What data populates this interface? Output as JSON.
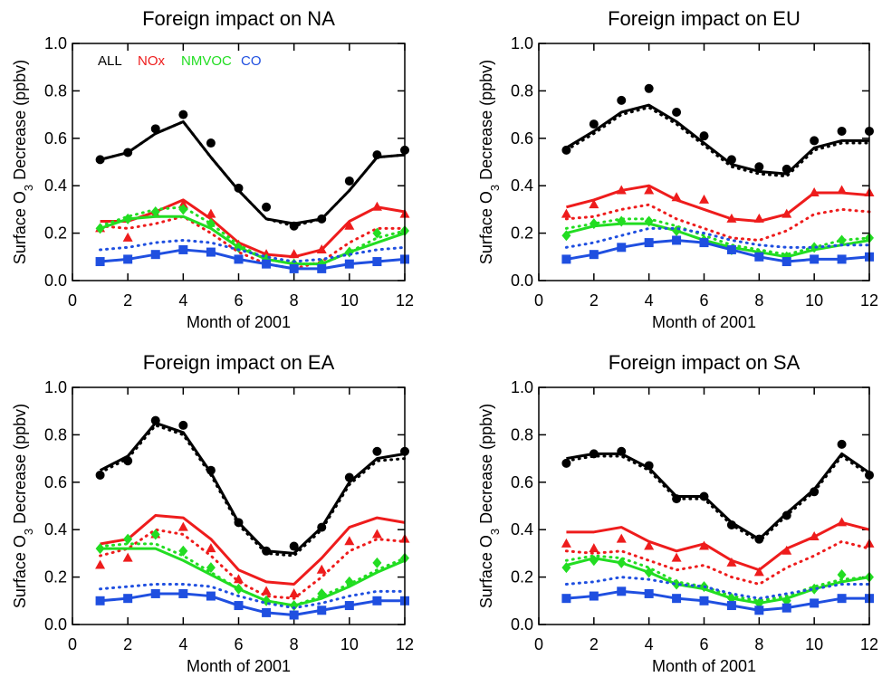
{
  "chart_data": [
    {
      "type": "line",
      "title": "Foreign impact on NA",
      "xlabel": "Month of 2001",
      "ylabel": [
        "Surface O",
        "3",
        " Decrease (ppbv)"
      ],
      "x": [
        1,
        2,
        3,
        4,
        5,
        6,
        7,
        8,
        9,
        10,
        11,
        12
      ],
      "xlim": [
        0,
        12
      ],
      "xticks": [
        0,
        2,
        4,
        6,
        8,
        10,
        12
      ],
      "ylim": [
        0,
        1
      ],
      "yticks": [
        {
          "value": 0,
          "label": "0.0"
        },
        0.2,
        0.4,
        0.6,
        0.8,
        {
          "value": 1,
          "label": "1.0"
        }
      ],
      "legend": "upper left",
      "series": [
        {
          "name": "ALL",
          "color": "#000000",
          "marker": "circle",
          "values": [
            0.51,
            0.54,
            0.62,
            0.67,
            0.52,
            0.38,
            0.26,
            0.24,
            0.26,
            0.38,
            0.52,
            0.53
          ],
          "dotted": [
            0.51,
            0.54,
            0.62,
            0.67,
            0.52,
            0.38,
            0.26,
            0.23,
            0.26,
            0.38,
            0.52,
            0.53
          ],
          "points": [
            0.51,
            0.54,
            0.64,
            0.7,
            0.58,
            0.39,
            0.31,
            0.23,
            0.26,
            0.42,
            0.53,
            0.55
          ]
        },
        {
          "name": "NOx",
          "color": "#ee1c1c",
          "marker": "triangle",
          "values": [
            0.25,
            0.25,
            0.29,
            0.34,
            0.26,
            0.16,
            0.11,
            0.1,
            0.13,
            0.25,
            0.31,
            0.29
          ],
          "dotted": [
            0.23,
            0.22,
            0.24,
            0.27,
            0.2,
            0.12,
            0.07,
            0.05,
            0.08,
            0.16,
            0.22,
            0.22
          ],
          "points": [
            0.22,
            0.18,
            0.28,
            0.32,
            0.28,
            0.15,
            0.11,
            0.11,
            0.13,
            0.23,
            0.31,
            0.28
          ]
        },
        {
          "name": "NMVOC",
          "color": "#22dd22",
          "marker": "diamond",
          "values": [
            0.22,
            0.26,
            0.27,
            0.27,
            0.22,
            0.14,
            0.09,
            0.07,
            0.07,
            0.12,
            0.16,
            0.2
          ],
          "dotted": [
            0.23,
            0.27,
            0.3,
            0.31,
            0.24,
            0.15,
            0.09,
            0.07,
            0.07,
            0.12,
            0.18,
            0.21
          ],
          "points": [
            0.22,
            0.26,
            0.29,
            0.3,
            0.24,
            0.14,
            0.09,
            0.07,
            0.07,
            0.12,
            0.2,
            0.21
          ]
        },
        {
          "name": "CO",
          "color": "#1f4fe0",
          "marker": "square",
          "values": [
            0.08,
            0.09,
            0.11,
            0.13,
            0.12,
            0.09,
            0.07,
            0.05,
            0.05,
            0.07,
            0.08,
            0.09
          ],
          "dotted": [
            0.13,
            0.14,
            0.16,
            0.17,
            0.16,
            0.13,
            0.1,
            0.08,
            0.09,
            0.11,
            0.13,
            0.14
          ],
          "points": [
            0.08,
            0.09,
            0.11,
            0.13,
            0.12,
            0.09,
            0.07,
            0.05,
            0.05,
            0.07,
            0.08,
            0.09
          ]
        }
      ]
    },
    {
      "type": "line",
      "title": "Foreign impact on EU",
      "xlabel": "Month of 2001",
      "ylabel": [
        "Surface O",
        "3",
        " Decrease (ppbv)"
      ],
      "x": [
        1,
        2,
        3,
        4,
        5,
        6,
        7,
        8,
        9,
        10,
        11,
        12
      ],
      "xlim": [
        0,
        12
      ],
      "xticks": [
        0,
        2,
        4,
        6,
        8,
        10,
        12
      ],
      "ylim": [
        0,
        1
      ],
      "yticks": [
        {
          "value": 0,
          "label": "0.0"
        },
        0.2,
        0.4,
        0.6,
        0.8,
        {
          "value": 1,
          "label": "1.0"
        }
      ],
      "series": [
        {
          "color": "#000000",
          "marker": "circle",
          "values": [
            0.56,
            0.63,
            0.71,
            0.74,
            0.67,
            0.58,
            0.49,
            0.46,
            0.45,
            0.56,
            0.59,
            0.59
          ],
          "dotted": [
            0.55,
            0.62,
            0.7,
            0.73,
            0.66,
            0.57,
            0.48,
            0.45,
            0.44,
            0.55,
            0.58,
            0.58
          ],
          "points": [
            0.55,
            0.66,
            0.76,
            0.81,
            0.71,
            0.61,
            0.51,
            0.48,
            0.47,
            0.59,
            0.63,
            0.63
          ]
        },
        {
          "color": "#ee1c1c",
          "marker": "triangle",
          "values": [
            0.31,
            0.34,
            0.38,
            0.4,
            0.34,
            0.3,
            0.26,
            0.25,
            0.28,
            0.37,
            0.37,
            0.36
          ],
          "dotted": [
            0.26,
            0.27,
            0.3,
            0.32,
            0.26,
            0.22,
            0.18,
            0.17,
            0.21,
            0.28,
            0.3,
            0.29
          ],
          "points": [
            0.28,
            0.32,
            0.38,
            0.38,
            0.35,
            0.34,
            0.26,
            0.26,
            0.28,
            0.37,
            0.38,
            0.37
          ]
        },
        {
          "color": "#22dd22",
          "marker": "diamond",
          "values": [
            0.2,
            0.23,
            0.24,
            0.24,
            0.21,
            0.17,
            0.14,
            0.12,
            0.1,
            0.13,
            0.15,
            0.17
          ],
          "dotted": [
            0.22,
            0.24,
            0.26,
            0.26,
            0.23,
            0.19,
            0.15,
            0.13,
            0.11,
            0.14,
            0.17,
            0.18
          ],
          "points": [
            0.19,
            0.24,
            0.25,
            0.25,
            0.21,
            0.17,
            0.13,
            0.11,
            0.1,
            0.14,
            0.17,
            0.18
          ]
        },
        {
          "color": "#1f4fe0",
          "marker": "square",
          "values": [
            0.09,
            0.11,
            0.14,
            0.16,
            0.17,
            0.16,
            0.13,
            0.1,
            0.08,
            0.09,
            0.09,
            0.1
          ],
          "dotted": [
            0.14,
            0.16,
            0.19,
            0.22,
            0.22,
            0.2,
            0.17,
            0.15,
            0.14,
            0.14,
            0.15,
            0.15
          ],
          "points": [
            0.09,
            0.11,
            0.14,
            0.16,
            0.17,
            0.16,
            0.13,
            0.1,
            0.08,
            0.09,
            0.09,
            0.1
          ]
        }
      ]
    },
    {
      "type": "line",
      "title": "Foreign impact on EA",
      "xlabel": "Month of 2001",
      "ylabel": [
        "Surface O",
        "3",
        " Decrease (ppbv)"
      ],
      "x": [
        1,
        2,
        3,
        4,
        5,
        6,
        7,
        8,
        9,
        10,
        11,
        12
      ],
      "xlim": [
        0,
        12
      ],
      "xticks": [
        0,
        2,
        4,
        6,
        8,
        10,
        12
      ],
      "ylim": [
        0,
        1
      ],
      "yticks": [
        {
          "value": 0,
          "label": "0.0"
        },
        0.2,
        0.4,
        0.6,
        0.8,
        {
          "value": 1,
          "label": "1.0"
        }
      ],
      "series": [
        {
          "color": "#000000",
          "marker": "circle",
          "values": [
            0.65,
            0.71,
            0.85,
            0.81,
            0.64,
            0.43,
            0.31,
            0.3,
            0.41,
            0.6,
            0.7,
            0.72
          ],
          "dotted": [
            0.64,
            0.7,
            0.84,
            0.8,
            0.63,
            0.42,
            0.3,
            0.29,
            0.4,
            0.59,
            0.69,
            0.7
          ],
          "points": [
            0.63,
            0.69,
            0.86,
            0.84,
            0.65,
            0.43,
            0.31,
            0.33,
            0.41,
            0.62,
            0.73,
            0.73
          ]
        },
        {
          "color": "#ee1c1c",
          "marker": "triangle",
          "values": [
            0.34,
            0.36,
            0.46,
            0.45,
            0.36,
            0.23,
            0.18,
            0.17,
            0.28,
            0.41,
            0.45,
            0.43
          ],
          "dotted": [
            0.29,
            0.32,
            0.4,
            0.38,
            0.29,
            0.18,
            0.12,
            0.11,
            0.2,
            0.31,
            0.36,
            0.35
          ],
          "points": [
            0.25,
            0.28,
            0.38,
            0.41,
            0.32,
            0.19,
            0.14,
            0.13,
            0.23,
            0.35,
            0.38,
            0.36
          ]
        },
        {
          "color": "#22dd22",
          "marker": "diamond",
          "values": [
            0.32,
            0.32,
            0.32,
            0.27,
            0.21,
            0.15,
            0.1,
            0.08,
            0.11,
            0.16,
            0.22,
            0.27
          ],
          "dotted": [
            0.33,
            0.34,
            0.34,
            0.29,
            0.22,
            0.15,
            0.1,
            0.08,
            0.12,
            0.17,
            0.23,
            0.28
          ],
          "points": [
            0.32,
            0.36,
            0.38,
            0.31,
            0.24,
            0.15,
            0.1,
            0.08,
            0.13,
            0.18,
            0.26,
            0.28
          ]
        },
        {
          "color": "#1f4fe0",
          "marker": "square",
          "values": [
            0.1,
            0.11,
            0.13,
            0.13,
            0.12,
            0.08,
            0.05,
            0.04,
            0.06,
            0.08,
            0.1,
            0.1
          ],
          "dotted": [
            0.15,
            0.16,
            0.17,
            0.17,
            0.16,
            0.12,
            0.09,
            0.07,
            0.09,
            0.12,
            0.14,
            0.14
          ],
          "points": [
            0.1,
            0.11,
            0.13,
            0.13,
            0.12,
            0.08,
            0.05,
            0.04,
            0.06,
            0.08,
            0.1,
            0.1
          ]
        }
      ]
    },
    {
      "type": "line",
      "title": "Foreign impact on SA",
      "xlabel": "Month of 2001",
      "ylabel": [
        "Surface O",
        "3",
        " Decrease (ppbv)"
      ],
      "x": [
        1,
        2,
        3,
        4,
        5,
        6,
        7,
        8,
        9,
        10,
        11,
        12
      ],
      "xlim": [
        0,
        12
      ],
      "xticks": [
        0,
        2,
        4,
        6,
        8,
        10,
        12
      ],
      "ylim": [
        0,
        1
      ],
      "yticks": [
        {
          "value": 0,
          "label": "0.0"
        },
        0.2,
        0.4,
        0.6,
        0.8,
        {
          "value": 1,
          "label": "1.0"
        }
      ],
      "series": [
        {
          "color": "#000000",
          "marker": "circle",
          "values": [
            0.7,
            0.72,
            0.72,
            0.66,
            0.54,
            0.54,
            0.43,
            0.36,
            0.47,
            0.57,
            0.72,
            0.64
          ],
          "dotted": [
            0.69,
            0.71,
            0.71,
            0.65,
            0.53,
            0.53,
            0.42,
            0.35,
            0.46,
            0.56,
            0.71,
            0.63
          ],
          "points": [
            0.68,
            0.72,
            0.73,
            0.67,
            0.53,
            0.54,
            0.42,
            0.36,
            0.46,
            0.56,
            0.76,
            0.63
          ]
        },
        {
          "color": "#ee1c1c",
          "marker": "triangle",
          "values": [
            0.39,
            0.39,
            0.41,
            0.35,
            0.31,
            0.34,
            0.27,
            0.23,
            0.32,
            0.37,
            0.43,
            0.4
          ],
          "dotted": [
            0.31,
            0.3,
            0.31,
            0.27,
            0.23,
            0.25,
            0.2,
            0.17,
            0.24,
            0.29,
            0.35,
            0.32
          ],
          "points": [
            0.34,
            0.32,
            0.36,
            0.33,
            0.28,
            0.33,
            0.26,
            0.22,
            0.31,
            0.37,
            0.43,
            0.34
          ]
        },
        {
          "color": "#22dd22",
          "marker": "diamond",
          "values": [
            0.25,
            0.28,
            0.26,
            0.22,
            0.17,
            0.15,
            0.11,
            0.09,
            0.11,
            0.15,
            0.18,
            0.2
          ],
          "dotted": [
            0.27,
            0.29,
            0.28,
            0.24,
            0.18,
            0.16,
            0.12,
            0.1,
            0.12,
            0.16,
            0.19,
            0.2
          ],
          "points": [
            0.24,
            0.27,
            0.26,
            0.22,
            0.17,
            0.16,
            0.11,
            0.09,
            0.1,
            0.15,
            0.21,
            0.2
          ]
        },
        {
          "color": "#1f4fe0",
          "marker": "square",
          "values": [
            0.11,
            0.12,
            0.14,
            0.13,
            0.11,
            0.1,
            0.08,
            0.06,
            0.07,
            0.09,
            0.11,
            0.11
          ],
          "dotted": [
            0.17,
            0.18,
            0.2,
            0.19,
            0.17,
            0.16,
            0.13,
            0.11,
            0.13,
            0.15,
            0.17,
            0.17
          ],
          "points": [
            0.11,
            0.12,
            0.14,
            0.13,
            0.11,
            0.1,
            0.08,
            0.06,
            0.07,
            0.09,
            0.11,
            0.11
          ]
        }
      ]
    }
  ]
}
